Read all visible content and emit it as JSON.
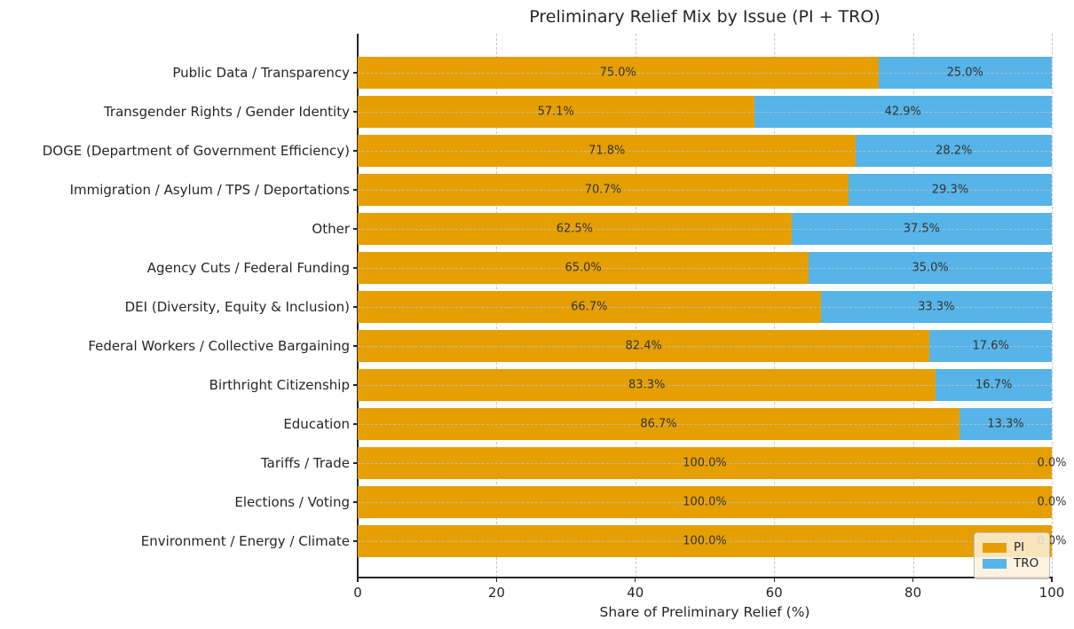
{
  "chart_data": {
    "type": "bar",
    "orientation": "horizontal",
    "stacked": true,
    "title": "Preliminary Relief Mix by Issue (PI + TRO)",
    "xlabel": "Share of Preliminary Relief (%)",
    "ylabel": "",
    "xlim": [
      0,
      100
    ],
    "xticks": [
      0,
      20,
      40,
      60,
      80,
      100
    ],
    "grid": true,
    "grid_style": "dashed",
    "legend_position": "lower right",
    "categories": [
      "Public Data / Transparency",
      "Transgender Rights / Gender Identity",
      "DOGE (Department of Government Efficiency)",
      "Immigration / Asylum / TPS / Deportations",
      "Other",
      "Agency Cuts / Federal Funding",
      "DEI (Diversity, Equity & Inclusion)",
      "Federal Workers / Collective Bargaining",
      "Birthright Citizenship",
      "Education",
      "Tariffs / Trade",
      "Elections / Voting",
      "Environment / Energy / Climate"
    ],
    "series": [
      {
        "name": "PI",
        "color": "#E69F00",
        "values": [
          75.0,
          57.1,
          71.8,
          70.7,
          62.5,
          65.0,
          66.7,
          82.4,
          83.3,
          86.7,
          100.0,
          100.0,
          100.0
        ]
      },
      {
        "name": "TRO",
        "color": "#56B4E9",
        "values": [
          25.0,
          42.9,
          28.2,
          29.3,
          37.5,
          35.0,
          33.3,
          17.6,
          16.7,
          13.3,
          0.0,
          0.0,
          0.0
        ]
      }
    ],
    "bar_label_format": "percent_one_decimal"
  },
  "colors": {
    "pi": "#E69F00",
    "tro": "#56B4E9",
    "text": "#262626",
    "bar_label_text": "#333333",
    "grid": "#c9c9c9",
    "spine": "#262626",
    "legend_face": "rgba(252,241,220,0.85)"
  }
}
